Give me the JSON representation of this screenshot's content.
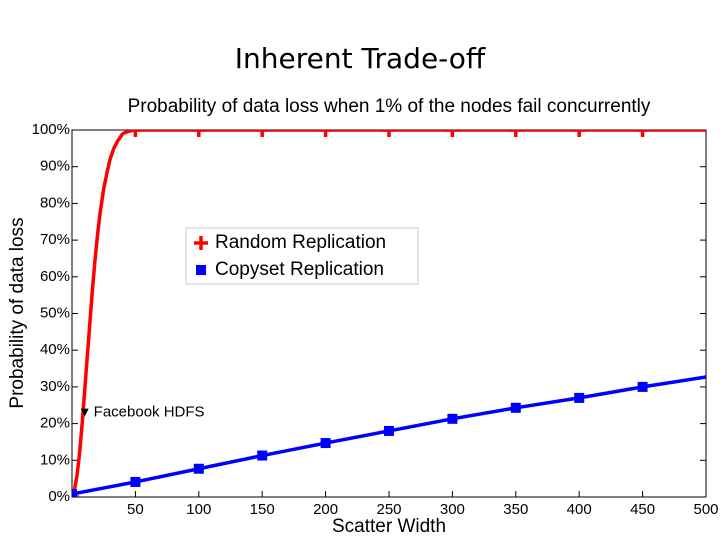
{
  "slide_title": "Inherent Trade-off",
  "chart_data": {
    "type": "line",
    "title": "Probability of data loss when 1% of the nodes fail concurrently",
    "x_label": "Scatter Width",
    "y_label": "Probability of data loss",
    "xlim": [
      0,
      500
    ],
    "xticks": [
      50,
      100,
      150,
      200,
      250,
      300,
      350,
      400,
      450,
      500
    ],
    "ylim": [
      0,
      100
    ],
    "yticks": [
      {
        "value": 0,
        "label": "0%"
      },
      {
        "value": 10,
        "label": "10%"
      },
      {
        "value": 20,
        "label": "20%"
      },
      {
        "value": 30,
        "label": "30%"
      },
      {
        "value": 40,
        "label": "40%"
      },
      {
        "value": 50,
        "label": "50%"
      },
      {
        "value": 60,
        "label": "60%"
      },
      {
        "value": 70,
        "label": "70%"
      },
      {
        "value": 80,
        "label": "80%"
      },
      {
        "value": 90,
        "label": "90%"
      },
      {
        "value": 100,
        "label": "100%"
      }
    ],
    "series": [
      {
        "name": "Random Replication",
        "color": "#ff0000",
        "marker": "plus",
        "line": {
          "x": [
            0,
            2,
            4,
            6,
            8,
            10,
            12,
            14,
            16,
            18,
            20,
            22,
            25,
            28,
            30,
            33,
            36,
            40,
            45,
            50,
            500
          ],
          "values": [
            0,
            2,
            6,
            12,
            20,
            29,
            38,
            47,
            56,
            64,
            71,
            77,
            84,
            89,
            92,
            95,
            97,
            99,
            99.7,
            100,
            100
          ]
        },
        "markers": {
          "x": [
            0,
            50,
            100,
            150,
            200,
            250,
            300,
            350,
            400,
            450
          ],
          "values": [
            0,
            100,
            100,
            100,
            100,
            100,
            100,
            100,
            100,
            100
          ]
        }
      },
      {
        "name": "Copyset Replication",
        "color": "#0000ff",
        "marker": "square",
        "line": {
          "x": [
            0,
            50,
            100,
            150,
            200,
            250,
            300,
            350,
            400,
            450,
            500
          ],
          "values": [
            0.8,
            4.1,
            7.7,
            11.3,
            14.7,
            18,
            21.3,
            24.3,
            27,
            30,
            32.7
          ]
        },
        "markers": {
          "x": [
            0,
            50,
            100,
            150,
            200,
            250,
            300,
            350,
            400,
            450
          ],
          "values": [
            0.8,
            4.1,
            7.7,
            11.3,
            14.7,
            18,
            21.3,
            24.3,
            27,
            30
          ]
        }
      }
    ],
    "annotations": [
      {
        "text": "Facebook HDFS",
        "x": 10,
        "y": 23
      }
    ]
  }
}
